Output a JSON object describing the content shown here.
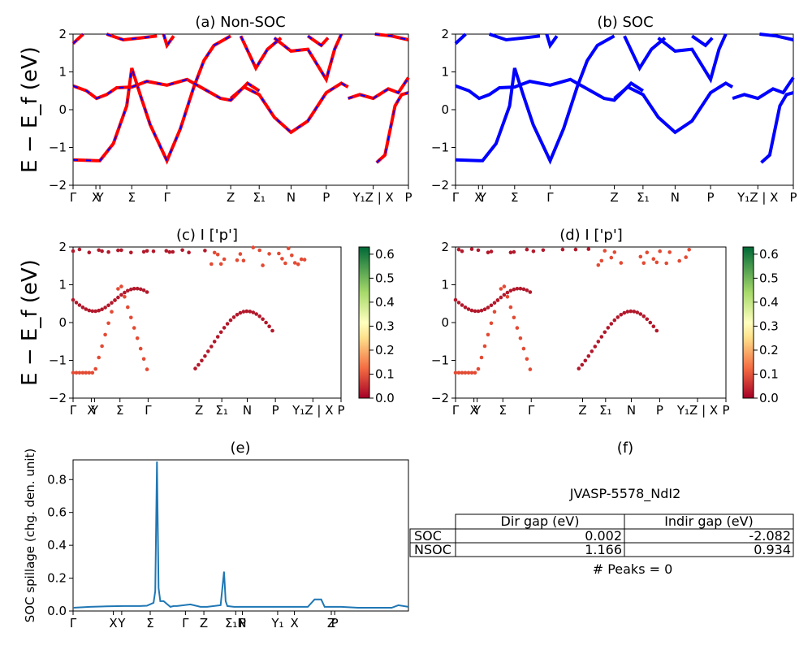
{
  "band_ticks": [
    "Γ",
    "X",
    "Y",
    "Σ",
    "Γ",
    "Z",
    "Σ₁",
    "N",
    "P",
    "Y₁Z | X",
    "P"
  ],
  "spill_ticks": [
    "Γ",
    "X",
    "Y",
    "Σ",
    "Γ",
    "Z",
    "Σ₁N",
    "P",
    "Y₁",
    "X",
    "Z",
    "P"
  ],
  "colors": {
    "nonsoc_a": "#ff0000",
    "nonsoc_b": "#0000ff",
    "soc": "#0000ff",
    "spillage": "#1f77b4"
  },
  "chart_data": [
    {
      "id": "a",
      "type": "line",
      "title": "(a) Non-SOC",
      "ylabel": "E − E_f (eV)",
      "ylim": [
        -2,
        2
      ],
      "yticks": [
        -2,
        -1,
        0,
        1,
        2
      ],
      "series": [
        {
          "x": [
            0,
            0.5,
            1,
            2,
            3,
            4,
            5,
            6,
            7,
            8,
            9,
            10
          ],
          "values": [
            -1.33,
            -1.33,
            -1.33,
            -1.1,
            0.3,
            1.1,
            0.3,
            -0.6,
            -1.33,
            -0.8,
            0.6,
            1.4
          ]
        },
        {
          "x": [
            0,
            1,
            2,
            3,
            4,
            5,
            6,
            7,
            8,
            9,
            10
          ],
          "values": [
            0.62,
            0.55,
            0.35,
            0.5,
            0.58,
            0.63,
            0.7,
            0.62,
            0.75,
            0.78,
            0.65
          ]
        },
        {
          "x": [
            0,
            2,
            4,
            6,
            8,
            10
          ],
          "values": [
            1.8,
            1.95,
            1.9,
            1.85,
            1.95,
            1.9
          ]
        },
        {
          "x": [
            0,
            2,
            4,
            6,
            8,
            10,
            12,
            14,
            16,
            18,
            20
          ],
          "values": [
            0.65,
            0.5,
            0.3,
            0.4,
            0.7,
            0.2,
            0.3,
            0.5,
            0.8,
            0.6,
            0.7
          ]
        }
      ]
    },
    {
      "id": "b",
      "type": "line",
      "title": "(b) SOC",
      "ylim": [
        -2,
        2
      ],
      "yticks": [
        -2,
        -1,
        0,
        1,
        2
      ],
      "series": [
        {
          "x": [
            0,
            0.5,
            1,
            2,
            3,
            4,
            5,
            6,
            7,
            8,
            9,
            10
          ],
          "values": [
            -1.33,
            -1.33,
            -1.33,
            -1.1,
            0.3,
            1.1,
            0.3,
            -0.6,
            -1.33,
            -0.8,
            0.6,
            1.4
          ]
        },
        {
          "x": [
            0,
            1,
            2,
            3,
            4,
            5,
            6,
            7,
            8,
            9,
            10
          ],
          "values": [
            0.62,
            0.55,
            0.35,
            0.5,
            0.58,
            0.63,
            0.7,
            0.62,
            0.75,
            0.78,
            0.65
          ]
        }
      ]
    },
    {
      "id": "c",
      "type": "scatter",
      "title": "(c)  I ['p']",
      "ylabel": "E − E_f (eV)",
      "ylim": [
        -2,
        2
      ],
      "yticks": [
        -2,
        -1,
        0,
        1,
        2
      ],
      "colorbar": {
        "ticks": [
          "0.0",
          "0.1",
          "0.2",
          "0.3",
          "0.4",
          "0.5",
          "0.6"
        ],
        "range": [
          0,
          0.63
        ],
        "cmap": "RdYlGn"
      }
    },
    {
      "id": "d",
      "type": "scatter",
      "title": "(d) I ['p']",
      "ylim": [
        -2,
        2
      ],
      "yticks": [
        -2,
        -1,
        0,
        1,
        2
      ],
      "colorbar": {
        "ticks": [
          "0.0",
          "0.1",
          "0.2",
          "0.3",
          "0.4",
          "0.5",
          "0.6"
        ],
        "range": [
          0,
          0.63
        ],
        "cmap": "RdYlGn"
      }
    },
    {
      "id": "e",
      "type": "line",
      "title": "(e)",
      "ylabel": "SOC spillage (chg. den. unit)",
      "ylim": [
        0,
        0.92
      ],
      "yticks": [
        "0.0",
        "0.2",
        "0.4",
        "0.6",
        "0.8"
      ],
      "x": [
        0,
        0.05,
        0.1,
        0.15,
        0.2,
        0.22,
        0.24,
        0.245,
        0.25,
        0.255,
        0.26,
        0.27,
        0.29,
        0.3,
        0.31,
        0.35,
        0.38,
        0.4,
        0.42,
        0.44,
        0.45,
        0.455,
        0.46,
        0.48,
        0.5,
        0.55,
        0.6,
        0.65,
        0.7,
        0.72,
        0.73,
        0.74,
        0.75,
        0.8,
        0.85,
        0.9,
        0.95,
        0.97,
        1.0
      ],
      "values": [
        0.02,
        0.025,
        0.028,
        0.03,
        0.03,
        0.032,
        0.05,
        0.12,
        0.91,
        0.14,
        0.06,
        0.06,
        0.025,
        0.03,
        0.03,
        0.04,
        0.025,
        0.025,
        0.03,
        0.035,
        0.24,
        0.06,
        0.03,
        0.025,
        0.025,
        0.025,
        0.025,
        0.025,
        0.025,
        0.07,
        0.07,
        0.07,
        0.025,
        0.025,
        0.02,
        0.02,
        0.02,
        0.035,
        0.025
      ]
    },
    {
      "id": "f",
      "type": "table",
      "title": "(f)",
      "subtitle": "JVASP-5578_NdI2",
      "columns": [
        "",
        "Dir gap (eV)",
        "Indir gap (eV)"
      ],
      "rows": [
        [
          "SOC",
          "0.002",
          "-2.082"
        ],
        [
          "NSOC",
          "1.166",
          "0.934"
        ]
      ],
      "footer": "# Peaks = 0"
    }
  ]
}
